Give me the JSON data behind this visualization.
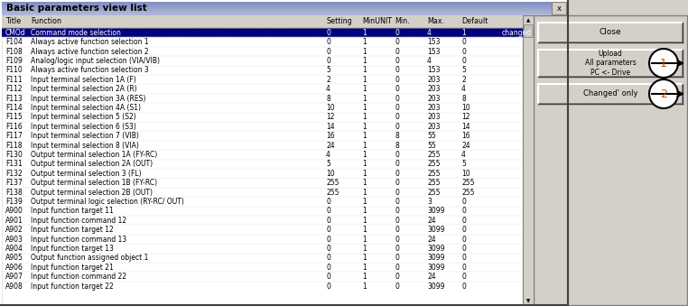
{
  "title": "Basic parameters view list",
  "close_btn": "Close",
  "upload_btn": "Upload\nAll parameters\nPC <- Drive",
  "changed_btn": "Changed' only",
  "columns": [
    "Title",
    "Function",
    "Setting",
    "MinUNIT",
    "Min.",
    "Max.",
    "Default"
  ],
  "rows": [
    [
      "CMOd",
      "Command mode selection",
      "0",
      "1",
      "0",
      "4",
      "1",
      "changed"
    ],
    [
      "F104",
      "Always active function selection 1",
      "0",
      "1",
      "0",
      "153",
      "0",
      ""
    ],
    [
      "F108",
      "Always active function selection 2",
      "0",
      "1",
      "0",
      "153",
      "0",
      ""
    ],
    [
      "F109",
      "Analog/logic input selection (VIA/VIB)",
      "0",
      "1",
      "0",
      "4",
      "0",
      ""
    ],
    [
      "F110",
      "Always active function selection 3",
      "5",
      "1",
      "0",
      "153",
      "5",
      ""
    ],
    [
      "F111",
      "Input terminal selection 1A (F)",
      "2",
      "1",
      "0",
      "203",
      "2",
      ""
    ],
    [
      "F112",
      "Input terminal selection 2A (R)",
      "4",
      "1",
      "0",
      "203",
      "4",
      ""
    ],
    [
      "F113",
      "Input terminal selection 3A (RES)",
      "8",
      "1",
      "0",
      "203",
      "8",
      ""
    ],
    [
      "F114",
      "Input terminal selection 4A (S1)",
      "10",
      "1",
      "0",
      "203",
      "10",
      ""
    ],
    [
      "F115",
      "Input terminal selection 5 (S2)",
      "12",
      "1",
      "0",
      "203",
      "12",
      ""
    ],
    [
      "F116",
      "Input terminal selection 6 (S3)",
      "14",
      "1",
      "0",
      "203",
      "14",
      ""
    ],
    [
      "F117",
      "Input terminal selection 7 (VIB)",
      "16",
      "1",
      "8",
      "55",
      "16",
      ""
    ],
    [
      "F118",
      "Input terminal selection 8 (VIA)",
      "24",
      "1",
      "8",
      "55",
      "24",
      ""
    ],
    [
      "F130",
      "Output terminal selection 1A (FY-RC)",
      "4",
      "1",
      "0",
      "255",
      "4",
      ""
    ],
    [
      "F131",
      "Output terminal selection 2A (OUT)",
      "5",
      "1",
      "0",
      "255",
      "5",
      ""
    ],
    [
      "F132",
      "Output terminal selection 3 (FL)",
      "10",
      "1",
      "0",
      "255",
      "10",
      ""
    ],
    [
      "F137",
      "Output terminal selection 1B (FY-RC)",
      "255",
      "1",
      "0",
      "255",
      "255",
      ""
    ],
    [
      "F138",
      "Output terminal selection 2B (OUT)",
      "255",
      "1",
      "0",
      "255",
      "255",
      ""
    ],
    [
      "F139",
      "Output terminal logic selection (RY-RC/ OUT)",
      "0",
      "1",
      "0",
      "3",
      "0",
      ""
    ],
    [
      "A900",
      "Input function target 11",
      "0",
      "1",
      "0",
      "3099",
      "0",
      ""
    ],
    [
      "A901",
      "Input function command 12",
      "0",
      "1",
      "0",
      "24",
      "0",
      ""
    ],
    [
      "A902",
      "Input function target 12",
      "0",
      "1",
      "0",
      "3099",
      "0",
      ""
    ],
    [
      "A903",
      "Input function command 13",
      "0",
      "1",
      "0",
      "24",
      "0",
      ""
    ],
    [
      "A904",
      "Input function target 13",
      "0",
      "1",
      "0",
      "3099",
      "0",
      ""
    ],
    [
      "A905",
      "Output function assigned object 1",
      "0",
      "1",
      "0",
      "3099",
      "0",
      ""
    ],
    [
      "A906",
      "Input function target 21",
      "0",
      "1",
      "0",
      "3099",
      "0",
      ""
    ],
    [
      "A907",
      "Input function command 22",
      "0",
      "1",
      "0",
      "24",
      "0",
      ""
    ],
    [
      "A908",
      "Input function target 22",
      "0",
      "1",
      "0",
      "3099",
      "0",
      ""
    ]
  ],
  "bg_color": "#d4d0c8",
  "title_bar_gradient_top": "#a8c4e0",
  "title_bar_gradient_bot": "#6090c0",
  "title_text_color": "#000000",
  "table_bg": "#ffffff",
  "header_bg": "#d4d0c8",
  "highlight_color": "#000080",
  "highlight_text": "#ffffff",
  "button_color": "#d4d0c8",
  "font_size": 5.5,
  "title_font_size": 7.5,
  "header_font_size": 5.8
}
